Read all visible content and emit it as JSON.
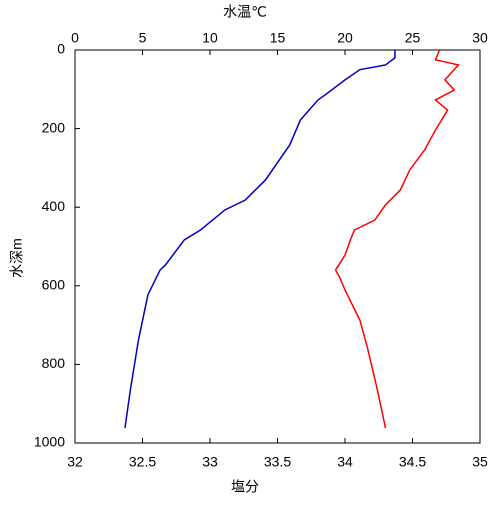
{
  "chart_data": {
    "type": "line",
    "x2label": "水温℃",
    "x2label_color": "#0000ff",
    "xlabel": "塩分",
    "xlabel_color": "#ff0000",
    "ylabel": "水深m",
    "xlim": [
      32,
      35
    ],
    "xticks": [
      32,
      32.5,
      33,
      33.5,
      34,
      34.5,
      35
    ],
    "x2lim": [
      0,
      30
    ],
    "x2ticks": [
      0,
      5,
      10,
      15,
      20,
      25,
      30
    ],
    "ylim": [
      1000,
      0
    ],
    "yticks": [
      0,
      200,
      400,
      600,
      800,
      1000
    ],
    "series": [
      {
        "axis": "x2",
        "color": "#0000c0",
        "x": [
          23.7,
          23.7,
          23.0,
          21.1,
          20.0,
          18.5,
          18.0,
          16.7,
          15.9,
          14.1,
          12.6,
          11.1,
          9.3,
          8.1,
          6.7,
          6.3,
          5.4,
          4.7,
          4.1,
          3.7
        ],
        "y": [
          0,
          20,
          38,
          50,
          76,
          115,
          127,
          178,
          242,
          331,
          382,
          407,
          458,
          483,
          547,
          560,
          623,
          738,
          865,
          962
        ]
      },
      {
        "axis": "x",
        "color": "#ff0000",
        "x": [
          34.7,
          34.67,
          34.84,
          34.74,
          34.81,
          34.67,
          34.76,
          34.67,
          34.59,
          34.48,
          34.41,
          34.3,
          34.22,
          34.07,
          34.04,
          34.0,
          33.93,
          33.96,
          34.0,
          34.11,
          34.17,
          34.24,
          34.3
        ],
        "y": [
          0,
          25,
          38,
          76,
          102,
          127,
          153,
          204,
          254,
          305,
          356,
          394,
          433,
          458,
          483,
          522,
          560,
          578,
          611,
          687,
          763,
          865,
          962
        ]
      }
    ]
  }
}
